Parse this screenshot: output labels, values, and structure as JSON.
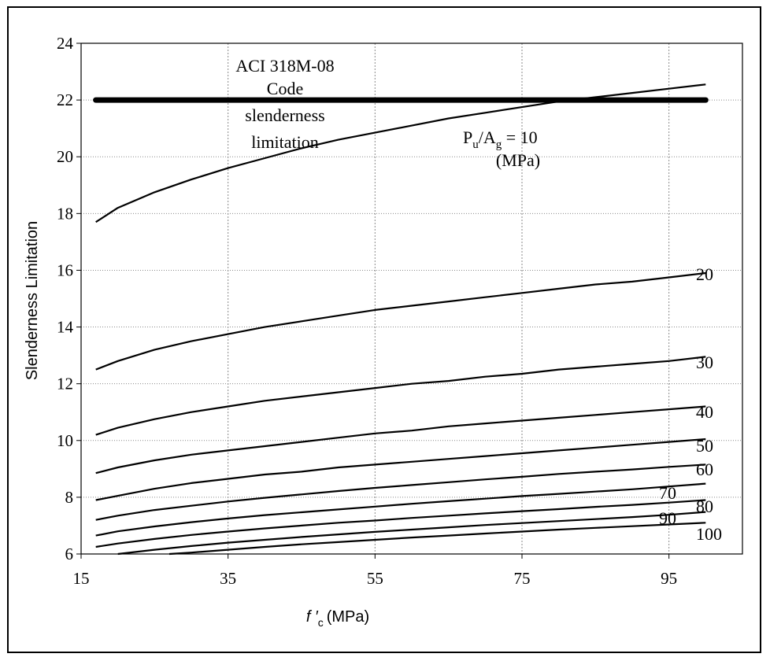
{
  "chart_data": {
    "type": "line",
    "title": "",
    "xlabel": {
      "italic_symbol": "f ′",
      "subscript": "c",
      "units": "(MPa)"
    },
    "ylabel": "Slenderness Limitation",
    "xlim": [
      15,
      105
    ],
    "ylim": [
      6,
      24
    ],
    "x_ticks": [
      15,
      35,
      55,
      75,
      95
    ],
    "y_ticks": [
      6,
      8,
      10,
      12,
      14,
      16,
      18,
      20,
      22,
      24
    ],
    "grid": "vertical-and-horizontal-dotted",
    "code_limit": {
      "value": 22,
      "x_range": [
        17,
        100
      ],
      "label_lines": [
        "ACI 318M-08",
        "Code",
        "slenderness",
        "limitation"
      ]
    },
    "curve_label": {
      "p_main": "P",
      "p_sub": "u",
      "slash_a": "/A",
      "a_sub": "g",
      "eq": " = 10",
      "units": "(MPa)"
    },
    "series": [
      {
        "name": "10",
        "x": [
          17,
          20,
          25,
          30,
          35,
          40,
          45,
          50,
          55,
          60,
          65,
          70,
          75,
          80,
          85,
          90,
          95,
          100
        ],
        "y": [
          17.7,
          18.2,
          18.75,
          19.2,
          19.6,
          19.95,
          20.3,
          20.6,
          20.85,
          21.1,
          21.35,
          21.55,
          21.75,
          21.95,
          22.1,
          22.25,
          22.4,
          22.55
        ]
      },
      {
        "name": "20",
        "x": [
          17,
          20,
          25,
          30,
          35,
          40,
          45,
          50,
          55,
          60,
          65,
          70,
          75,
          80,
          85,
          90,
          95,
          100
        ],
        "y": [
          12.5,
          12.8,
          13.2,
          13.5,
          13.75,
          14.0,
          14.2,
          14.4,
          14.6,
          14.75,
          14.9,
          15.05,
          15.2,
          15.35,
          15.5,
          15.6,
          15.75,
          15.9
        ]
      },
      {
        "name": "30",
        "x": [
          17,
          20,
          25,
          30,
          35,
          40,
          45,
          50,
          55,
          60,
          65,
          70,
          75,
          80,
          85,
          90,
          95,
          100
        ],
        "y": [
          10.2,
          10.45,
          10.75,
          11.0,
          11.2,
          11.4,
          11.55,
          11.7,
          11.85,
          12.0,
          12.1,
          12.25,
          12.35,
          12.5,
          12.6,
          12.7,
          12.8,
          12.95
        ]
      },
      {
        "name": "40",
        "x": [
          17,
          20,
          25,
          30,
          35,
          40,
          45,
          50,
          55,
          60,
          65,
          70,
          75,
          80,
          85,
          90,
          95,
          100
        ],
        "y": [
          8.85,
          9.05,
          9.3,
          9.5,
          9.65,
          9.8,
          9.95,
          10.1,
          10.25,
          10.35,
          10.5,
          10.6,
          10.7,
          10.8,
          10.9,
          11.0,
          11.1,
          11.2
        ]
      },
      {
        "name": "50",
        "x": [
          17,
          20,
          25,
          30,
          35,
          40,
          45,
          50,
          55,
          60,
          65,
          70,
          75,
          80,
          85,
          90,
          95,
          100
        ],
        "y": [
          7.9,
          8.05,
          8.3,
          8.5,
          8.65,
          8.8,
          8.9,
          9.05,
          9.15,
          9.25,
          9.35,
          9.45,
          9.55,
          9.65,
          9.75,
          9.85,
          9.95,
          10.05
        ]
      },
      {
        "name": "60",
        "x": [
          17,
          20,
          25,
          30,
          35,
          40,
          45,
          50,
          55,
          60,
          65,
          70,
          75,
          80,
          85,
          90,
          95,
          100
        ],
        "y": [
          7.2,
          7.35,
          7.55,
          7.7,
          7.85,
          7.98,
          8.1,
          8.22,
          8.33,
          8.43,
          8.53,
          8.63,
          8.72,
          8.82,
          8.9,
          8.98,
          9.07,
          9.15
        ]
      },
      {
        "name": "70",
        "x": [
          17,
          20,
          25,
          30,
          35,
          40,
          45,
          50,
          55,
          60,
          65,
          70,
          75,
          80,
          85,
          90,
          95,
          100
        ],
        "y": [
          6.65,
          6.8,
          6.97,
          7.12,
          7.25,
          7.37,
          7.47,
          7.57,
          7.67,
          7.77,
          7.86,
          7.95,
          8.04,
          8.12,
          8.2,
          8.28,
          8.38,
          8.48
        ]
      },
      {
        "name": "80",
        "x": [
          17,
          20,
          25,
          30,
          35,
          40,
          45,
          50,
          55,
          60,
          65,
          70,
          75,
          80,
          85,
          90,
          95,
          100
        ],
        "y": [
          6.25,
          6.37,
          6.53,
          6.67,
          6.79,
          6.9,
          7.0,
          7.1,
          7.18,
          7.27,
          7.35,
          7.43,
          7.51,
          7.58,
          7.66,
          7.73,
          7.81,
          7.9
        ]
      },
      {
        "name": "90",
        "x": [
          20,
          25,
          30,
          35,
          40,
          45,
          50,
          55,
          60,
          65,
          70,
          75,
          80,
          85,
          90,
          95,
          100
        ],
        "y": [
          6.0,
          6.15,
          6.28,
          6.4,
          6.5,
          6.6,
          6.69,
          6.78,
          6.86,
          6.94,
          7.02,
          7.09,
          7.16,
          7.23,
          7.3,
          7.38,
          7.48
        ]
      },
      {
        "name": "100",
        "x": [
          27,
          30,
          35,
          40,
          45,
          50,
          55,
          60,
          65,
          70,
          75,
          80,
          85,
          90,
          95,
          100
        ],
        "y": [
          6.0,
          6.05,
          6.15,
          6.25,
          6.34,
          6.42,
          6.5,
          6.58,
          6.65,
          6.72,
          6.79,
          6.86,
          6.92,
          6.98,
          7.04,
          7.1
        ]
      }
    ],
    "series_labels": [
      "20",
      "30",
      "40",
      "50",
      "60",
      "70",
      "80",
      "90",
      "100"
    ]
  }
}
